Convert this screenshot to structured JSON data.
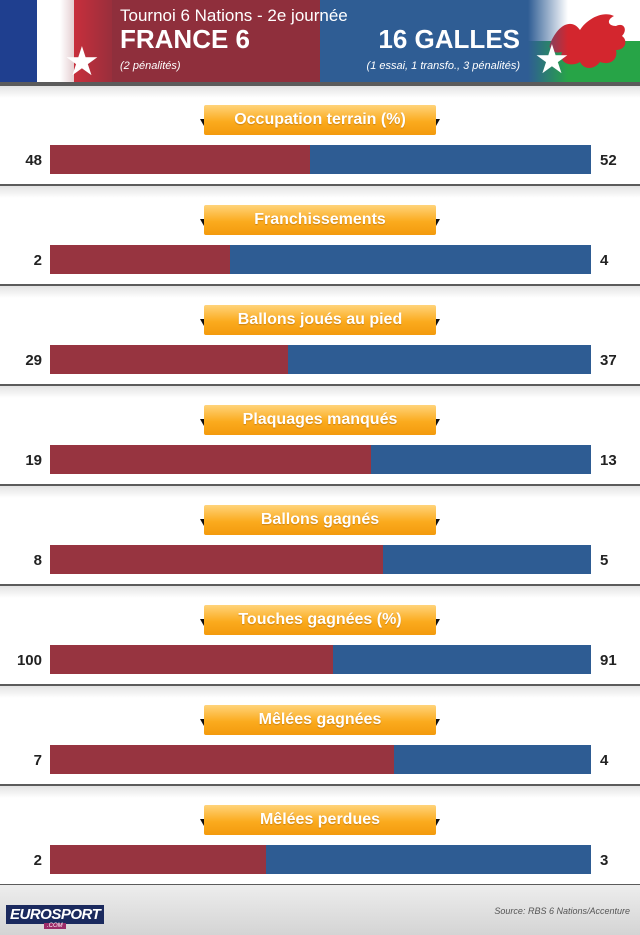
{
  "header": {
    "title": "Tournoi 6 Nations - 2e journée",
    "team_left": "FRANCE 6",
    "team_left_detail": "(2 pénalités)",
    "team_right": "16 GALLES",
    "team_right_detail": "(1 essai, 1 transfo., 3 pénalités)"
  },
  "colors": {
    "france": "#973440",
    "wales": "#2e5c93",
    "label_pill": "#fbab1e"
  },
  "chart_data": {
    "type": "bar",
    "orientation": "horizontal-stacked-share",
    "series": [
      {
        "name": "FRANCE",
        "values": [
          48,
          2,
          29,
          19,
          8,
          100,
          7,
          2
        ]
      },
      {
        "name": "GALLES",
        "values": [
          52,
          4,
          37,
          13,
          5,
          91,
          4,
          3
        ]
      }
    ],
    "categories": [
      "Occupation terrain  (%)",
      "Franchissements",
      "Ballons joués au pied",
      "Plaquages manqués",
      "Ballons gagnés",
      "Touches gagnées (%)",
      "Mêlées gagnées",
      "Mêlées perdues"
    ],
    "stats": [
      {
        "label": "Occupation terrain  (%)",
        "france": 48,
        "wales": 52
      },
      {
        "label": "Franchissements",
        "france": 2,
        "wales": 4
      },
      {
        "label": "Ballons joués au pied",
        "france": 29,
        "wales": 37
      },
      {
        "label": "Plaquages manqués",
        "france": 19,
        "wales": 13
      },
      {
        "label": "Ballons gagnés",
        "france": 8,
        "wales": 5
      },
      {
        "label": "Touches gagnées (%)",
        "france": 100,
        "wales": 91
      },
      {
        "label": "Mêlées gagnées",
        "france": 7,
        "wales": 4
      },
      {
        "label": "Mêlées perdues",
        "france": 2,
        "wales": 3
      }
    ]
  },
  "footer": {
    "logo": "EUROSPORT",
    "logo_sub": ".COM",
    "source": "Source: RBS 6 Nations/Accenture"
  }
}
